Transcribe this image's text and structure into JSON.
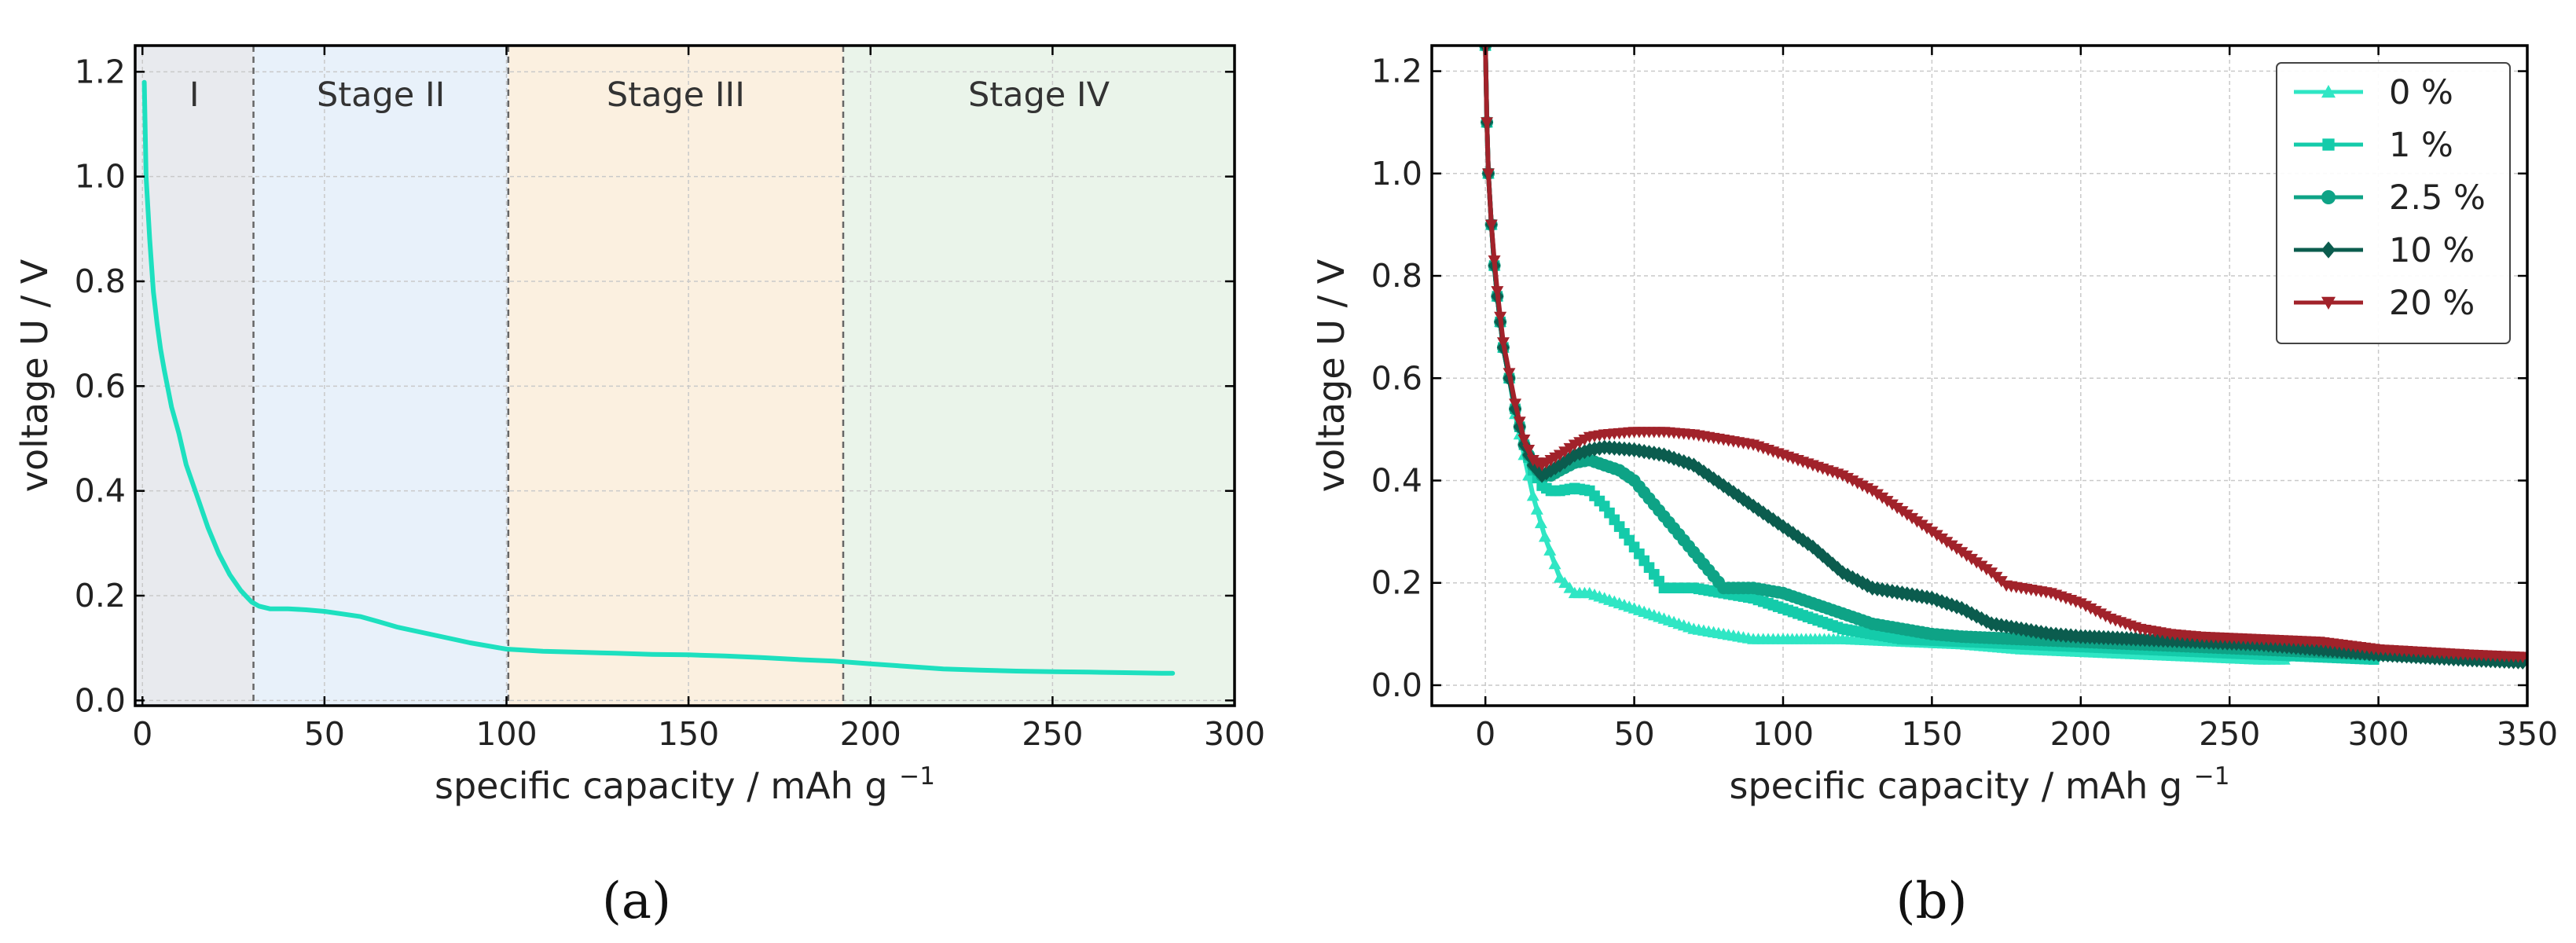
{
  "chart_data": [
    {
      "id": "a",
      "type": "line",
      "panel_label": "(a)",
      "xlabel": "specific capacity / mAh g",
      "xlabel_sup": "−1",
      "ylabel": "voltage U / V",
      "xlim": [
        -2,
        300
      ],
      "ylim": [
        -0.01,
        1.25
      ],
      "xticks": [
        0,
        50,
        100,
        150,
        200,
        250,
        300
      ],
      "xtick_labels": [
        "0",
        "50",
        "100",
        "150",
        "200",
        "250",
        "300"
      ],
      "yticks": [
        0.0,
        0.2,
        0.4,
        0.6,
        0.8,
        1.0,
        1.2
      ],
      "ytick_labels": [
        "0.0",
        "0.2",
        "0.4",
        "0.6",
        "0.8",
        "1.0",
        "1.2"
      ],
      "grid": true,
      "regions": [
        {
          "label": "I",
          "x0": -2,
          "x1": 30.5,
          "color": "#e8eaee"
        },
        {
          "label": "Stage II",
          "x0": 30.5,
          "x1": 100.5,
          "color": "#e8f1fa"
        },
        {
          "label": "Stage III",
          "x0": 100.5,
          "x1": 192.5,
          "color": "#fbf0e0"
        },
        {
          "label": "Stage IV",
          "x0": 192.5,
          "x1": 300,
          "color": "#eaf4ea"
        }
      ],
      "series": [
        {
          "name": "curve",
          "color": "#1de0bf",
          "x": [
            0.5,
            1,
            2,
            3,
            4,
            5,
            6,
            8,
            10,
            12,
            15,
            18,
            21,
            24,
            27,
            29,
            30,
            32,
            35,
            40,
            45,
            50,
            55,
            60,
            65,
            70,
            80,
            90,
            100,
            110,
            120,
            130,
            140,
            150,
            160,
            170,
            180,
            190,
            200,
            210,
            220,
            230,
            240,
            250,
            260,
            270,
            280,
            283
          ],
          "y": [
            1.18,
            1.0,
            0.88,
            0.78,
            0.72,
            0.67,
            0.63,
            0.56,
            0.51,
            0.45,
            0.39,
            0.33,
            0.28,
            0.24,
            0.21,
            0.195,
            0.188,
            0.18,
            0.175,
            0.175,
            0.173,
            0.17,
            0.165,
            0.16,
            0.15,
            0.14,
            0.125,
            0.11,
            0.098,
            0.094,
            0.092,
            0.09,
            0.088,
            0.087,
            0.085,
            0.082,
            0.078,
            0.075,
            0.07,
            0.065,
            0.06,
            0.058,
            0.056,
            0.055,
            0.054,
            0.053,
            0.052,
            0.052
          ]
        }
      ]
    },
    {
      "id": "b",
      "type": "line",
      "panel_label": "(b)",
      "xlabel": "specific capacity / mAh g",
      "xlabel_sup": "−1",
      "ylabel": "voltage U / V",
      "xlim": [
        -18,
        350
      ],
      "ylim": [
        -0.04,
        1.25
      ],
      "xticks": [
        0,
        50,
        100,
        150,
        200,
        250,
        300,
        350
      ],
      "xtick_labels": [
        "0",
        "50",
        "100",
        "150",
        "200",
        "250",
        "300",
        "350"
      ],
      "yticks": [
        0.0,
        0.2,
        0.4,
        0.6,
        0.8,
        1.0,
        1.2
      ],
      "ytick_labels": [
        "0.0",
        "0.2",
        "0.4",
        "0.6",
        "0.8",
        "1.0",
        "1.2"
      ],
      "grid": true,
      "legend_position": "top-right",
      "series": [
        {
          "name": "0 %",
          "color": "#2fe6c4",
          "marker": "triangle",
          "x": [
            0,
            0.5,
            1,
            2,
            3,
            4,
            5,
            6,
            8,
            10,
            13,
            16,
            20,
            25,
            30,
            35,
            40,
            50,
            60,
            70,
            80,
            90,
            100,
            120,
            140,
            160,
            180,
            200,
            220,
            240,
            260,
            270
          ],
          "y": [
            1.25,
            1.1,
            1.0,
            0.9,
            0.82,
            0.76,
            0.71,
            0.66,
            0.6,
            0.53,
            0.45,
            0.37,
            0.29,
            0.21,
            0.18,
            0.18,
            0.17,
            0.15,
            0.13,
            0.11,
            0.1,
            0.09,
            0.09,
            0.09,
            0.085,
            0.08,
            0.07,
            0.065,
            0.06,
            0.055,
            0.05,
            0.05
          ]
        },
        {
          "name": "1 %",
          "color": "#14cbaa",
          "marker": "square",
          "x": [
            0,
            0.5,
            1,
            2,
            3,
            4,
            5,
            6,
            8,
            10,
            13,
            16,
            19,
            22,
            25,
            30,
            35,
            40,
            50,
            60,
            70,
            80,
            90,
            100,
            110,
            120,
            140,
            160,
            180,
            200,
            220,
            240,
            260,
            280,
            300
          ],
          "y": [
            1.25,
            1.1,
            1.0,
            0.9,
            0.82,
            0.76,
            0.71,
            0.66,
            0.6,
            0.54,
            0.47,
            0.42,
            0.39,
            0.38,
            0.38,
            0.385,
            0.38,
            0.35,
            0.27,
            0.19,
            0.19,
            0.18,
            0.17,
            0.15,
            0.13,
            0.11,
            0.09,
            0.085,
            0.08,
            0.075,
            0.07,
            0.065,
            0.06,
            0.055,
            0.05
          ]
        },
        {
          "name": "2.5 %",
          "color": "#0ea386",
          "marker": "circle",
          "x": [
            0,
            0.5,
            1,
            2,
            3,
            4,
            5,
            6,
            8,
            10,
            13,
            16,
            19,
            22,
            25,
            30,
            35,
            40,
            45,
            50,
            60,
            70,
            80,
            90,
            100,
            110,
            120,
            130,
            140,
            150,
            160,
            180,
            200,
            220,
            240,
            260,
            280,
            300,
            320
          ],
          "y": [
            1.25,
            1.1,
            1.0,
            0.9,
            0.82,
            0.76,
            0.71,
            0.66,
            0.6,
            0.54,
            0.47,
            0.43,
            0.41,
            0.41,
            0.42,
            0.435,
            0.44,
            0.43,
            0.42,
            0.4,
            0.33,
            0.26,
            0.19,
            0.19,
            0.18,
            0.16,
            0.14,
            0.12,
            0.11,
            0.1,
            0.095,
            0.09,
            0.085,
            0.08,
            0.075,
            0.07,
            0.065,
            0.06,
            0.055
          ]
        },
        {
          "name": "10 %",
          "color": "#0b5c4e",
          "marker": "diamond",
          "x": [
            0,
            0.5,
            1,
            2,
            3,
            4,
            5,
            6,
            8,
            10,
            13,
            16,
            19,
            22,
            25,
            30,
            35,
            40,
            50,
            60,
            70,
            80,
            90,
            100,
            110,
            120,
            130,
            135,
            140,
            150,
            160,
            170,
            180,
            190,
            200,
            220,
            240,
            260,
            280,
            300,
            330,
            350
          ],
          "y": [
            1.25,
            1.1,
            1.0,
            0.9,
            0.82,
            0.76,
            0.71,
            0.66,
            0.6,
            0.54,
            0.47,
            0.43,
            0.41,
            0.42,
            0.43,
            0.45,
            0.46,
            0.465,
            0.46,
            0.45,
            0.43,
            0.39,
            0.35,
            0.31,
            0.27,
            0.22,
            0.19,
            0.185,
            0.18,
            0.17,
            0.15,
            0.12,
            0.11,
            0.1,
            0.095,
            0.09,
            0.085,
            0.08,
            0.07,
            0.06,
            0.05,
            0.045
          ]
        },
        {
          "name": "20 %",
          "color": "#a1222a",
          "marker": "triangle-down",
          "x": [
            0,
            0.5,
            1,
            2,
            3,
            4,
            5,
            6,
            8,
            10,
            13,
            16,
            19,
            22,
            25,
            30,
            35,
            40,
            50,
            60,
            70,
            80,
            90,
            100,
            110,
            120,
            130,
            140,
            150,
            160,
            170,
            175,
            180,
            190,
            200,
            210,
            220,
            230,
            240,
            260,
            280,
            300,
            330,
            350
          ],
          "y": [
            1.25,
            1.1,
            1.0,
            0.9,
            0.83,
            0.77,
            0.72,
            0.67,
            0.61,
            0.55,
            0.48,
            0.44,
            0.43,
            0.44,
            0.45,
            0.47,
            0.485,
            0.49,
            0.495,
            0.495,
            0.49,
            0.48,
            0.47,
            0.45,
            0.43,
            0.41,
            0.38,
            0.34,
            0.3,
            0.26,
            0.22,
            0.195,
            0.19,
            0.18,
            0.16,
            0.13,
            0.11,
            0.1,
            0.095,
            0.09,
            0.085,
            0.07,
            0.06,
            0.055
          ]
        }
      ]
    }
  ]
}
